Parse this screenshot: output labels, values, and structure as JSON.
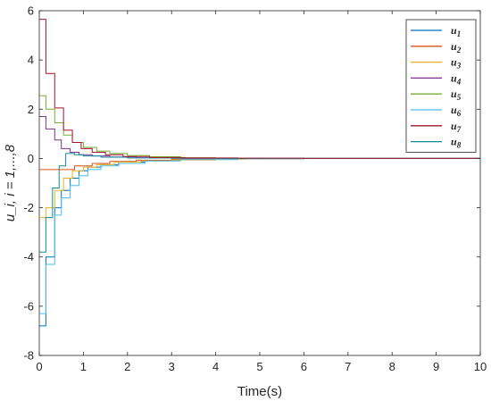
{
  "chart_data": {
    "type": "line",
    "xlabel": "Time(s)",
    "ylabel": "u_i, i = 1,...,8",
    "xlim": [
      0,
      10
    ],
    "ylim": [
      -8,
      6
    ],
    "xticks": [
      0,
      1,
      2,
      3,
      4,
      5,
      6,
      7,
      8,
      9,
      10
    ],
    "yticks": [
      -8,
      -6,
      -4,
      -2,
      0,
      2,
      4,
      6
    ],
    "grid": false,
    "legend_position": "top-right",
    "step_interpolation": true,
    "series": [
      {
        "name": "u1",
        "color": "#0072BD",
        "points": [
          [
            0,
            -6.8
          ],
          [
            0.15,
            -4.0
          ],
          [
            0.35,
            -2.0
          ],
          [
            0.5,
            -1.3
          ],
          [
            0.7,
            -0.8
          ],
          [
            0.9,
            -0.5
          ],
          [
            1.1,
            -0.35
          ],
          [
            1.4,
            -0.25
          ],
          [
            1.8,
            -0.15
          ],
          [
            2.4,
            -0.08
          ],
          [
            3.2,
            -0.03
          ],
          [
            4.5,
            -0.01
          ],
          [
            6,
            0
          ],
          [
            10,
            0
          ]
        ]
      },
      {
        "name": "u2",
        "color": "#D95319",
        "points": [
          [
            0,
            -0.45
          ],
          [
            0.5,
            -0.45
          ],
          [
            0.8,
            -0.3
          ],
          [
            1.2,
            -0.2
          ],
          [
            1.6,
            -0.12
          ],
          [
            2.2,
            -0.07
          ],
          [
            3,
            -0.03
          ],
          [
            4,
            -0.01
          ],
          [
            6,
            0
          ],
          [
            10,
            0
          ]
        ]
      },
      {
        "name": "u3",
        "color": "#EDB120",
        "points": [
          [
            0,
            -2.4
          ],
          [
            0.15,
            -2.0
          ],
          [
            0.35,
            -1.3
          ],
          [
            0.55,
            -0.8
          ],
          [
            0.75,
            -0.5
          ],
          [
            1.0,
            -0.35
          ],
          [
            1.3,
            -0.25
          ],
          [
            1.7,
            -0.15
          ],
          [
            2.3,
            -0.1
          ],
          [
            3,
            -0.06
          ],
          [
            4,
            -0.03
          ],
          [
            4.7,
            -0.01
          ],
          [
            6,
            0
          ],
          [
            10,
            0
          ]
        ]
      },
      {
        "name": "u4",
        "color": "#7E2F8E",
        "points": [
          [
            0,
            1.7
          ],
          [
            0.15,
            1.2
          ],
          [
            0.35,
            0.75
          ],
          [
            0.5,
            0.4
          ],
          [
            0.7,
            0.25
          ],
          [
            0.9,
            0.15
          ],
          [
            1.2,
            0.1
          ],
          [
            1.6,
            0.06
          ],
          [
            2.2,
            0.03
          ],
          [
            3,
            0.01
          ],
          [
            4,
            0
          ],
          [
            10,
            0
          ]
        ]
      },
      {
        "name": "u5",
        "color": "#77AC30",
        "points": [
          [
            0,
            2.55
          ],
          [
            0.15,
            2.0
          ],
          [
            0.35,
            1.45
          ],
          [
            0.55,
            0.95
          ],
          [
            0.75,
            0.65
          ],
          [
            1.0,
            0.45
          ],
          [
            1.3,
            0.3
          ],
          [
            1.6,
            0.2
          ],
          [
            2.0,
            0.12
          ],
          [
            2.5,
            0.07
          ],
          [
            3.2,
            0.03
          ],
          [
            4,
            0.01
          ],
          [
            5,
            0
          ],
          [
            10,
            0
          ]
        ]
      },
      {
        "name": "u6",
        "color": "#4DBEEE",
        "points": [
          [
            0,
            -6.3
          ],
          [
            0.15,
            -4.3
          ],
          [
            0.35,
            -2.3
          ],
          [
            0.5,
            -1.6
          ],
          [
            0.7,
            -1.1
          ],
          [
            0.9,
            -0.7
          ],
          [
            1.1,
            -0.45
          ],
          [
            1.4,
            -0.3
          ],
          [
            1.8,
            -0.2
          ],
          [
            2.4,
            -0.1
          ],
          [
            3.2,
            -0.05
          ],
          [
            4.5,
            -0.01
          ],
          [
            6,
            0
          ],
          [
            10,
            0
          ]
        ]
      },
      {
        "name": "u7",
        "color": "#A2142F",
        "points": [
          [
            0,
            5.65
          ],
          [
            0.15,
            3.45
          ],
          [
            0.35,
            2.05
          ],
          [
            0.55,
            1.15
          ],
          [
            0.75,
            0.65
          ],
          [
            0.95,
            0.4
          ],
          [
            1.2,
            0.25
          ],
          [
            1.5,
            0.15
          ],
          [
            1.9,
            0.08
          ],
          [
            2.5,
            0.04
          ],
          [
            3.3,
            0.02
          ],
          [
            4.5,
            0.01
          ],
          [
            6,
            0
          ],
          [
            10,
            0
          ]
        ]
      },
      {
        "name": "u8",
        "color": "#0E8B98",
        "points": [
          [
            0,
            -3.8
          ],
          [
            0.15,
            -2.4
          ],
          [
            0.3,
            -1.2
          ],
          [
            0.45,
            -0.3
          ],
          [
            0.6,
            0.2
          ],
          [
            0.8,
            0.15
          ],
          [
            1.0,
            0.1
          ],
          [
            1.4,
            0.05
          ],
          [
            2,
            0.02
          ],
          [
            3,
            0.01
          ],
          [
            4,
            0
          ],
          [
            10,
            0
          ]
        ]
      }
    ]
  }
}
